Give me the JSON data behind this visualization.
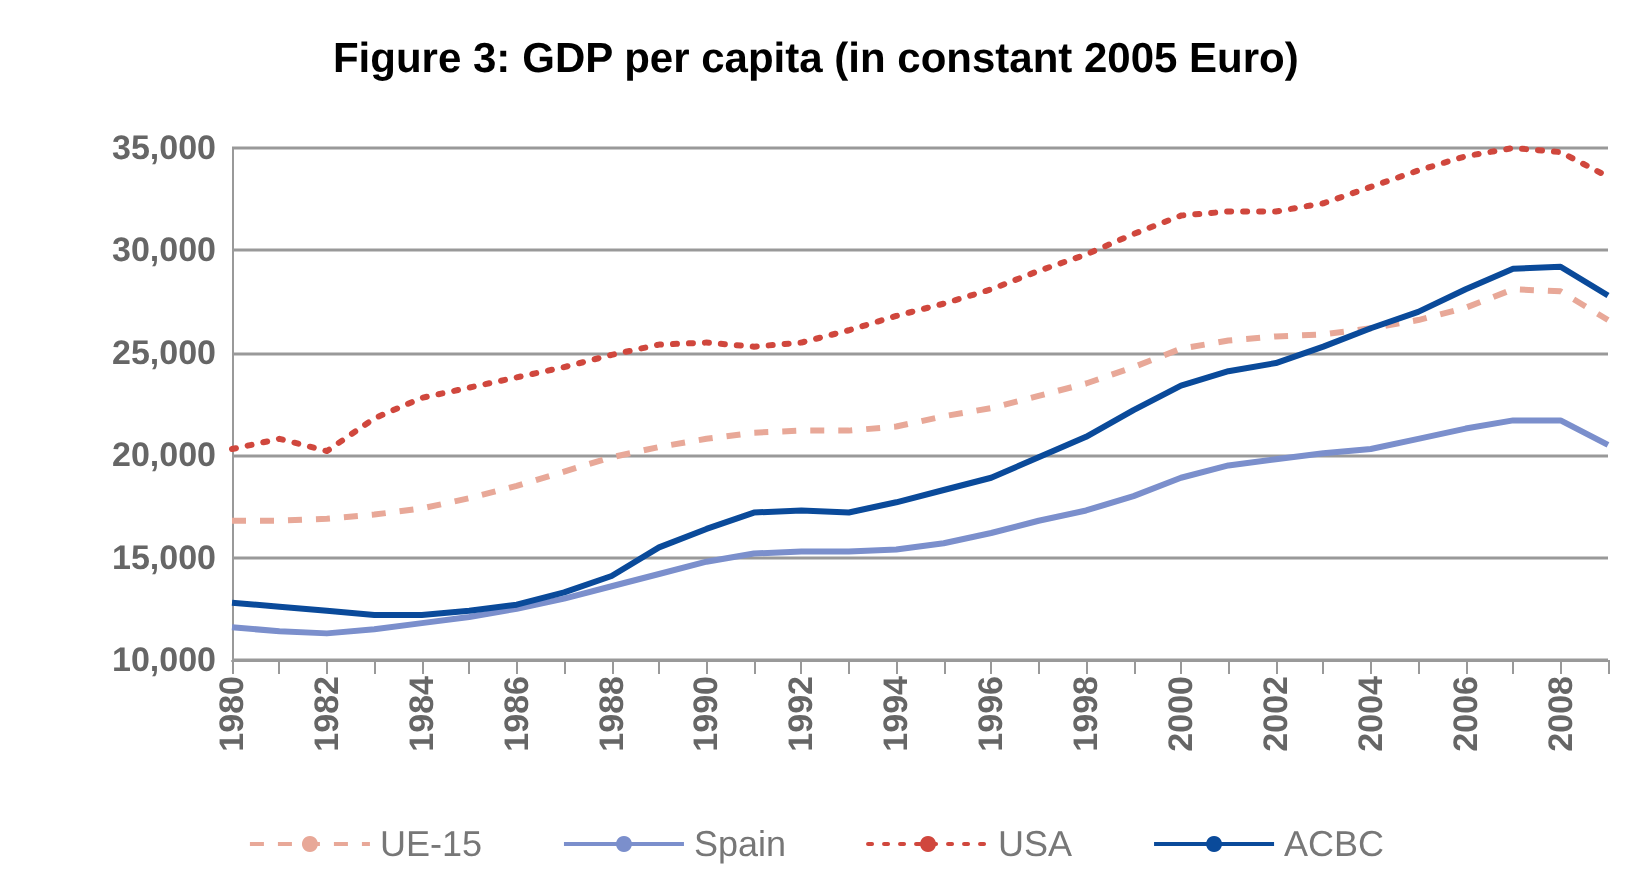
{
  "chart_data": {
    "type": "line",
    "title": "Figure 3: GDP per capita (in constant 2005 Euro)",
    "categories": [
      "1980",
      null,
      "1982",
      null,
      "1984",
      null,
      "1986",
      null,
      "1988",
      null,
      "1990",
      null,
      "1992",
      null,
      "1994",
      null,
      "1996",
      null,
      "1998",
      null,
      "2000",
      null,
      "2002",
      null,
      "2004",
      null,
      "2006",
      null,
      "2008",
      null
    ],
    "series": [
      {
        "name": "UE-15",
        "color": "#e8a898",
        "line_style": "dashed",
        "values": [
          16800,
          16800,
          16900,
          17100,
          17400,
          17900,
          18500,
          19200,
          19900,
          20400,
          20800,
          21100,
          21200,
          21200,
          21400,
          21900,
          22300,
          22900,
          23500,
          24300,
          25200,
          25600,
          25800,
          25900,
          26200,
          26600,
          27200,
          28100,
          28000,
          26600
        ]
      },
      {
        "name": "Spain",
        "color": "#7b8fcc",
        "line_style": "solid",
        "values": [
          11600,
          11400,
          11300,
          11500,
          11800,
          12100,
          12500,
          13000,
          13600,
          14200,
          14800,
          15200,
          15300,
          15300,
          15400,
          15700,
          16200,
          16800,
          17300,
          18000,
          18900,
          19500,
          19800,
          20100,
          20300,
          20800,
          21300,
          21700,
          21700,
          20500
        ]
      },
      {
        "name": "USA",
        "color": "#d0473d",
        "line_style": "dotted",
        "values": [
          20300,
          20800,
          20200,
          21800,
          22800,
          23300,
          23800,
          24300,
          24900,
          25400,
          25500,
          25300,
          25500,
          26100,
          26800,
          27400,
          28100,
          29000,
          29800,
          30800,
          31700,
          31900,
          31900,
          32300,
          33100,
          33900,
          34600,
          35000,
          34800,
          33600
        ]
      },
      {
        "name": "ACBC",
        "color": "#0a4a9a",
        "line_style": "solid",
        "values": [
          12800,
          12600,
          12400,
          12200,
          12200,
          12400,
          12700,
          13300,
          14100,
          15500,
          16400,
          17200,
          17300,
          17200,
          17700,
          18300,
          18900,
          19900,
          20900,
          22200,
          23400,
          24100,
          24500,
          25300,
          26200,
          27000,
          28100,
          29100,
          29200,
          27800
        ]
      }
    ],
    "ylim": [
      10000,
      35000
    ],
    "yticks": [
      {
        "value": 10000,
        "label": "10,000"
      },
      {
        "value": 15000,
        "label": "15,000"
      },
      {
        "value": 20000,
        "label": "20,000"
      },
      {
        "value": 25000,
        "label": "25,000"
      },
      {
        "value": 30000,
        "label": "30,000"
      },
      {
        "value": 35000,
        "label": "35,000"
      }
    ],
    "grid": "y",
    "legend": "bottom",
    "marker": "none"
  }
}
